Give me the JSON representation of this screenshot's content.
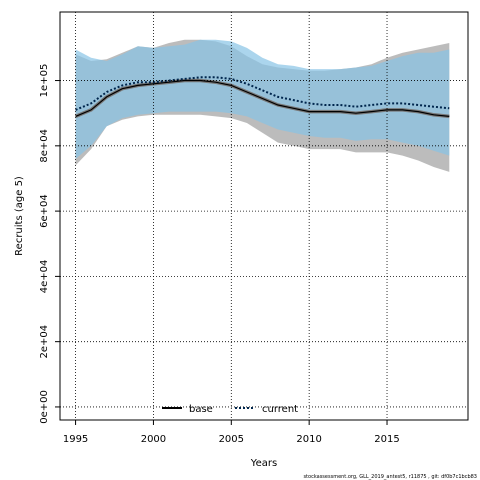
{
  "chart_data": {
    "type": "area",
    "xlabel": "Years",
    "ylabel": "Recruits (age 5)",
    "xlim": [
      1994,
      2020.2
    ],
    "ylim": [
      -4000,
      121000
    ],
    "xticks": [
      1995,
      2000,
      2005,
      2010,
      2015
    ],
    "xtick_labels": [
      "1995",
      "2000",
      "2005",
      "2010",
      "2015"
    ],
    "yticks": [
      0,
      20000,
      40000,
      60000,
      80000,
      100000
    ],
    "ytick_labels": [
      "0e+00",
      "2e+04",
      "4e+04",
      "6e+04",
      "8e+04",
      "1e+05"
    ],
    "grid": true,
    "legend_position": "bottom-center",
    "x": [
      1995,
      1996,
      1997,
      1998,
      1999,
      2000,
      2001,
      2002,
      2003,
      2004,
      2005,
      2006,
      2007,
      2008,
      2009,
      2010,
      2011,
      2012,
      2013,
      2014,
      2015,
      2016,
      2017,
      2018,
      2019
    ],
    "series": [
      {
        "name": "base",
        "color": "#000000",
        "fill": "#a6a6a6",
        "line_style": "solid",
        "values": [
          89000,
          91000,
          95000,
          97500,
          98500,
          99000,
          99500,
          100000,
          100000,
          99500,
          98500,
          96500,
          94500,
          92500,
          91500,
          90500,
          90500,
          90500,
          90000,
          90500,
          91000,
          91000,
          90500,
          89500,
          89000
        ],
        "lower": [
          74000,
          79000,
          86000,
          88000,
          89000,
          89500,
          89500,
          89500,
          89500,
          89000,
          88500,
          87000,
          84000,
          81000,
          80000,
          79000,
          79000,
          79000,
          78000,
          78000,
          78000,
          77000,
          75500,
          73500,
          72000
        ],
        "upper": [
          108000,
          106000,
          106500,
          108500,
          110500,
          110000,
          111500,
          112500,
          112500,
          112000,
          110500,
          107500,
          105000,
          104000,
          103500,
          103000,
          103000,
          103500,
          104000,
          105000,
          107000,
          108500,
          109500,
          110500,
          111500
        ]
      },
      {
        "name": "current",
        "color": "#00264d",
        "fill": "#87c3e6",
        "line_style": "dotted",
        "values": [
          91000,
          93000,
          96500,
          98500,
          99500,
          99500,
          100000,
          100500,
          101000,
          101000,
          100500,
          99000,
          97000,
          95000,
          94000,
          93000,
          92500,
          92500,
          92000,
          92500,
          93000,
          93000,
          92500,
          92000,
          91500
        ],
        "lower": [
          76000,
          80000,
          86000,
          88500,
          89500,
          90000,
          90500,
          90500,
          90500,
          90500,
          90000,
          89000,
          87000,
          85000,
          84000,
          83000,
          82500,
          82500,
          81500,
          82000,
          82000,
          81000,
          80000,
          78500,
          77000
        ],
        "upper": [
          109500,
          107000,
          106000,
          108000,
          110500,
          110000,
          110500,
          111000,
          112500,
          112500,
          112000,
          110000,
          107000,
          105000,
          104500,
          103500,
          103500,
          103500,
          104000,
          104500,
          106000,
          107500,
          108500,
          108500,
          109500
        ]
      }
    ],
    "footnote": "stockassessment.org, GLL_2019_antest5, r11875 , git: df0b7c1bcb83"
  }
}
